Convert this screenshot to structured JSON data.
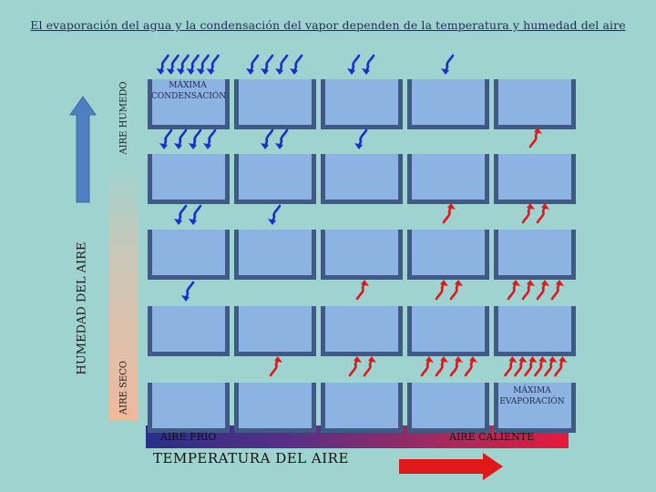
{
  "title": "El evaporación del agua y la condensación del vapor dependen de la temperatura y humedad del aire",
  "y_axis": {
    "label": "HUMEDAD DEL AIRE",
    "top_label": "AIRE HUMEDO",
    "bottom_label": "AIRE SECO"
  },
  "x_axis": {
    "label": "TEMPERATURA DEL AIRE",
    "left_label": "AIRE FRIO",
    "right_label": "AIRE CALIENTE"
  },
  "annotations": {
    "max_condensation": "MÁXIMA CONDENSACIÓN",
    "max_evaporation": "MÁXIMA EVAPORACIÓN"
  },
  "colors": {
    "background": "#9fd3cf",
    "condensation_arrow": "#1a2fd0",
    "evaporation_arrow": "#e01818",
    "humidity_arrow": "#4f7fc0",
    "temperature_arrow": "#e01818"
  },
  "grid": {
    "rows": 5,
    "cols": 5,
    "arrows": [
      [
        {
          "type": "down",
          "count": 6
        },
        {
          "type": "down",
          "count": 4
        },
        {
          "type": "down",
          "count": 2
        },
        {
          "type": "down",
          "count": 1
        },
        {
          "type": "none",
          "count": 0
        }
      ],
      [
        {
          "type": "down",
          "count": 4
        },
        {
          "type": "down",
          "count": 2
        },
        {
          "type": "down",
          "count": 1
        },
        {
          "type": "none",
          "count": 0
        },
        {
          "type": "up",
          "count": 1
        }
      ],
      [
        {
          "type": "down",
          "count": 2
        },
        {
          "type": "down",
          "count": 1
        },
        {
          "type": "none",
          "count": 0
        },
        {
          "type": "up",
          "count": 1
        },
        {
          "type": "up",
          "count": 2
        }
      ],
      [
        {
          "type": "down",
          "count": 1
        },
        {
          "type": "none",
          "count": 0
        },
        {
          "type": "up",
          "count": 1
        },
        {
          "type": "up",
          "count": 2
        },
        {
          "type": "up",
          "count": 4
        }
      ],
      [
        {
          "type": "none",
          "count": 0
        },
        {
          "type": "up",
          "count": 1
        },
        {
          "type": "up",
          "count": 2
        },
        {
          "type": "up",
          "count": 4
        },
        {
          "type": "up",
          "count": 6
        }
      ]
    ]
  }
}
